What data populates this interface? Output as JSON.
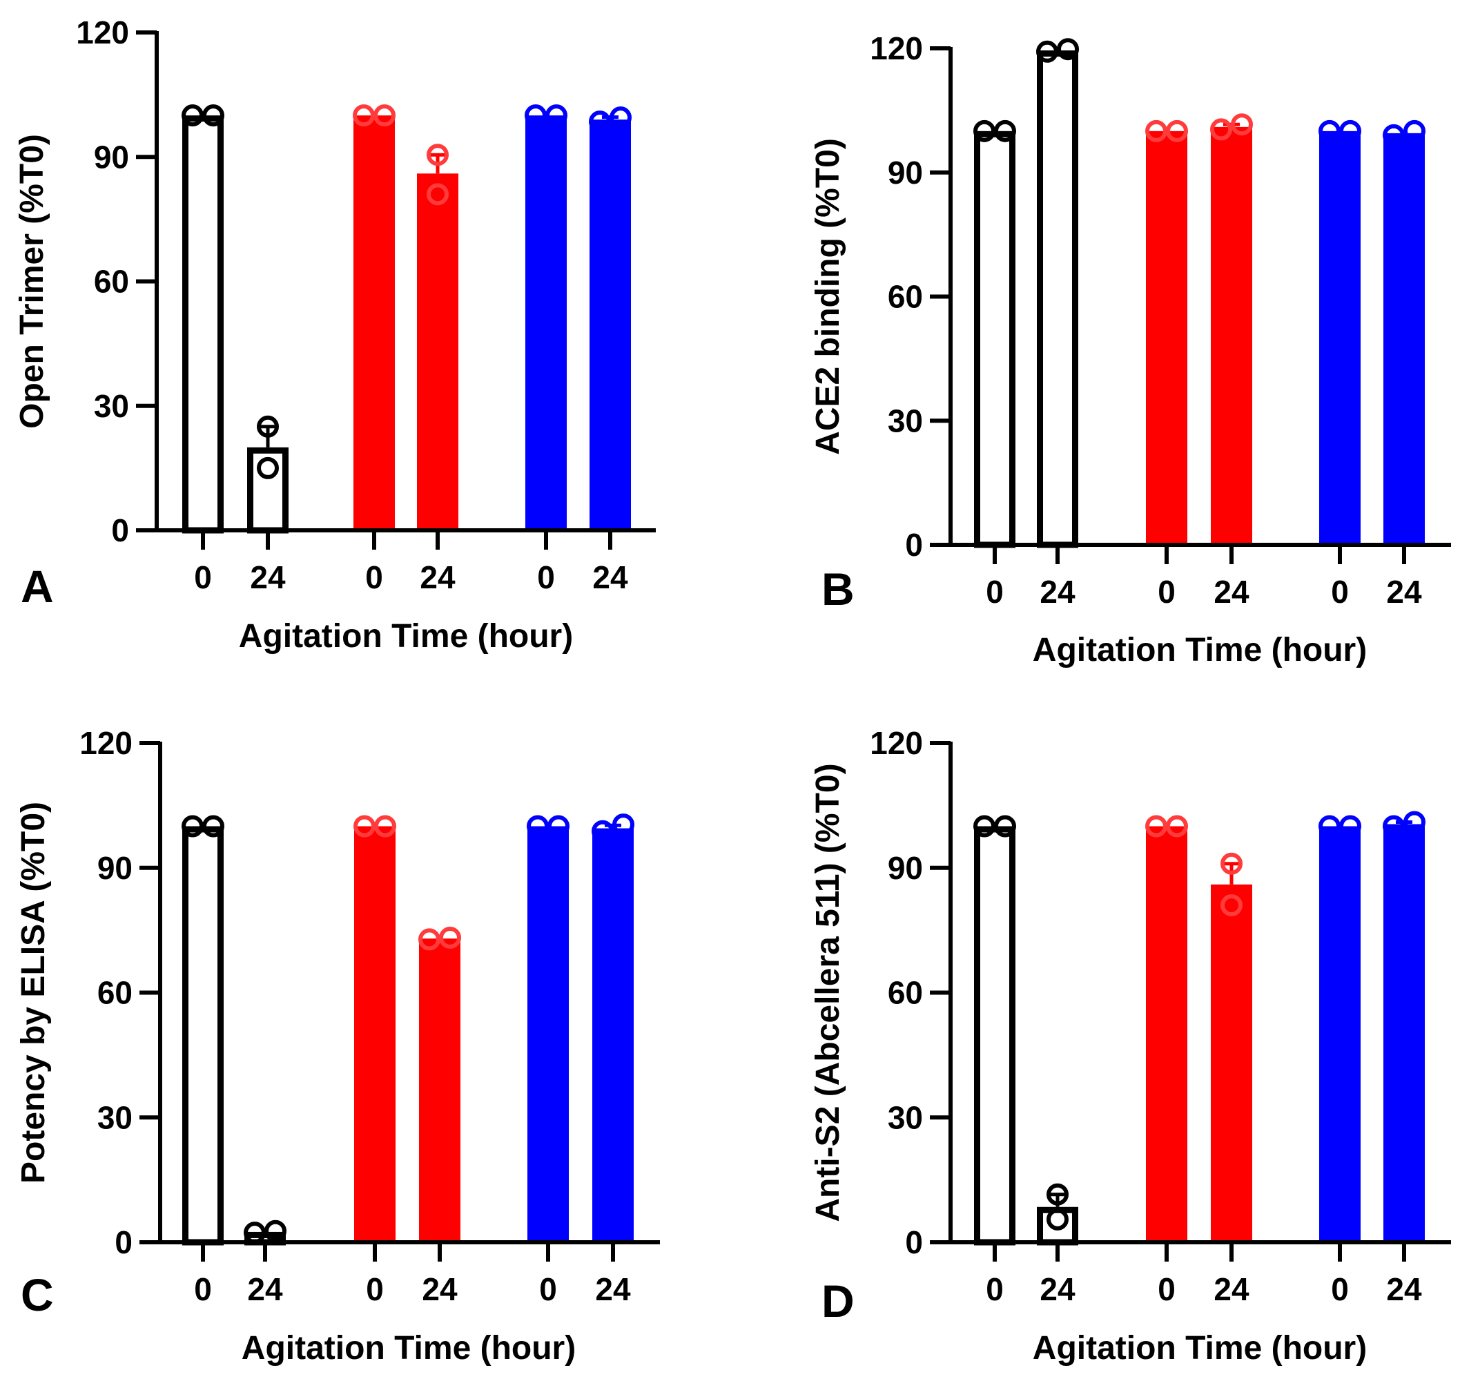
{
  "chart_data": [
    {
      "type": "bar",
      "panel_letter": "A",
      "ylabel": "Open Trimer (%T0)",
      "xlabel": "Agitation Time (hour)",
      "ylim": [
        0,
        120
      ],
      "yticks": [
        "0",
        "30",
        "60",
        "90",
        "120"
      ],
      "categories": [
        "0",
        "24",
        "0",
        "24",
        "0",
        "24"
      ],
      "values": [
        100,
        20,
        100,
        86,
        100,
        99
      ],
      "errors": [
        0,
        5,
        0,
        4.5,
        0,
        0.6
      ],
      "points": [
        [
          100,
          100
        ],
        [
          15,
          25
        ],
        [
          100,
          100
        ],
        [
          81,
          90.5
        ],
        [
          100,
          100
        ],
        [
          98.5,
          99.5
        ]
      ],
      "colors": [
        "#ffffff",
        "#ffffff",
        "#ff0000",
        "#ff0000",
        "#0000ff",
        "#0000ff"
      ],
      "point_colors": [
        "#000000",
        "#000000",
        "#ff3b3b",
        "#ff3b3b",
        "#0000ff",
        "#0000ff"
      ]
    },
    {
      "type": "bar",
      "panel_letter": "B",
      "ylabel": "ACE2 binding (%T0)",
      "xlabel": "Agitation Time (hour)",
      "ylim": [
        0,
        120
      ],
      "yticks": [
        "0",
        "30",
        "60",
        "90",
        "120"
      ],
      "categories": [
        "0",
        "24",
        "0",
        "24",
        "0",
        "24"
      ],
      "values": [
        100,
        119.5,
        100,
        101,
        100,
        99.5
      ],
      "errors": [
        0,
        0.3,
        0,
        0.6,
        0,
        0.4
      ],
      "points": [
        [
          100,
          100
        ],
        [
          119.2,
          119.8
        ],
        [
          100,
          100
        ],
        [
          100.4,
          101.6
        ],
        [
          100,
          100
        ],
        [
          99,
          100
        ]
      ],
      "colors": [
        "#ffffff",
        "#ffffff",
        "#ff0000",
        "#ff0000",
        "#0000ff",
        "#0000ff"
      ],
      "point_colors": [
        "#000000",
        "#000000",
        "#ff3b3b",
        "#ff3b3b",
        "#0000ff",
        "#0000ff"
      ]
    },
    {
      "type": "bar",
      "panel_letter": "C",
      "ylabel": "Potency by ELISA (%T0)",
      "xlabel": "Agitation Time (hour)",
      "ylim": [
        0,
        120
      ],
      "yticks": [
        "0",
        "30",
        "60",
        "90",
        "120"
      ],
      "categories": [
        "0",
        "24",
        "0",
        "24",
        "0",
        "24"
      ],
      "values": [
        100,
        2.5,
        100,
        73,
        100,
        99.5
      ],
      "errors": [
        0,
        0.3,
        0,
        0.3,
        0,
        0.7
      ],
      "points": [
        [
          100,
          100
        ],
        [
          2.3,
          2.7
        ],
        [
          100,
          100
        ],
        [
          72.8,
          73.2
        ],
        [
          100,
          100
        ],
        [
          98.8,
          100.4
        ]
      ],
      "colors": [
        "#ffffff",
        "#ffffff",
        "#ff0000",
        "#ff0000",
        "#0000ff",
        "#0000ff"
      ],
      "point_colors": [
        "#000000",
        "#000000",
        "#ff3b3b",
        "#ff3b3b",
        "#0000ff",
        "#0000ff"
      ]
    },
    {
      "type": "bar",
      "panel_letter": "D",
      "ylabel": "Anti-S2 (Abcellera 511) (%T0)",
      "xlabel": "Agitation Time (hour)",
      "ylim": [
        0,
        120
      ],
      "yticks": [
        "0",
        "30",
        "60",
        "90",
        "120"
      ],
      "categories": [
        "0",
        "24",
        "0",
        "24",
        "0",
        "24"
      ],
      "values": [
        100,
        8.5,
        100,
        86,
        100,
        100.5
      ],
      "errors": [
        0,
        3,
        0,
        5,
        0,
        0.5
      ],
      "points": [
        [
          100,
          100
        ],
        [
          5.5,
          11.5
        ],
        [
          100,
          100
        ],
        [
          81,
          91
        ],
        [
          100,
          100
        ],
        [
          100,
          101
        ]
      ],
      "colors": [
        "#ffffff",
        "#ffffff",
        "#ff0000",
        "#ff0000",
        "#0000ff",
        "#0000ff"
      ],
      "point_colors": [
        "#000000",
        "#000000",
        "#ff3b3b",
        "#ff3b3b",
        "#0000ff",
        "#0000ff"
      ]
    }
  ]
}
